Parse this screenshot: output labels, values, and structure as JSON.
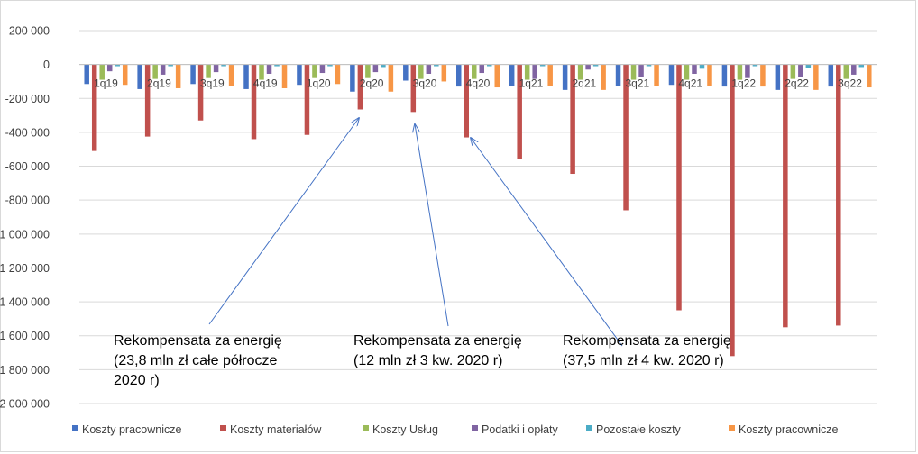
{
  "chart_data": {
    "type": "bar",
    "title": "",
    "xlabel": "",
    "ylabel": "",
    "ylim": [
      -2000000,
      200000
    ],
    "yticks": [
      200000,
      0,
      -200000,
      -400000,
      -600000,
      -800000,
      -1000000,
      -1200000,
      -1400000,
      -1600000,
      -1800000,
      -2000000
    ],
    "ytick_labels": [
      "200 000",
      "0",
      "-200 000",
      "-400 000",
      "-600 000",
      "-800 000",
      "-1 000 000",
      "-1 200 000",
      "-1 400 000",
      "-1 600 000",
      "-1 800 000",
      "-2 000 000"
    ],
    "grid": true,
    "legend_position": "bottom",
    "categories": [
      "1q19",
      "2q19",
      "3q19",
      "4q19",
      "1q20",
      "2q20",
      "3q20",
      "4q20",
      "1q21",
      "2q21",
      "3q21",
      "4q21",
      "1q22",
      "2q22",
      "3q22"
    ],
    "series": [
      {
        "name": "Koszty pracownicze",
        "color": "#4472C4",
        "values": [
          -115000,
          -145000,
          -115000,
          -145000,
          -120000,
          -160000,
          -95000,
          -130000,
          -125000,
          -150000,
          -125000,
          -120000,
          -130000,
          -150000,
          -130000
        ]
      },
      {
        "name": "Koszty materiałów",
        "color": "#C0504D",
        "values": [
          -510000,
          -425000,
          -330000,
          -440000,
          -415000,
          -265000,
          -280000,
          -430000,
          -555000,
          -645000,
          -860000,
          -1450000,
          -1720000,
          -1550000,
          -1540000
        ]
      },
      {
        "name": "Koszty Usług",
        "color": "#9BBB59",
        "values": [
          -90000,
          -85000,
          -80000,
          -90000,
          -80000,
          -80000,
          -85000,
          -85000,
          -90000,
          -90000,
          -90000,
          -90000,
          -90000,
          -85000,
          -85000
        ]
      },
      {
        "name": "Podatki i opłaty",
        "color": "#8064A2",
        "values": [
          -40000,
          -60000,
          -45000,
          -55000,
          -50000,
          -45000,
          -55000,
          -50000,
          -85000,
          -30000,
          -75000,
          -55000,
          -80000,
          -75000,
          -60000
        ]
      },
      {
        "name": "Pozostałe koszty",
        "color": "#4BACC6",
        "values": [
          -10000,
          -10000,
          -10000,
          -10000,
          -10000,
          -15000,
          -10000,
          -10000,
          -10000,
          -10000,
          -10000,
          -25000,
          -10000,
          -20000,
          -15000
        ]
      },
      {
        "name": "Koszty pracownicze",
        "color": "#F79646",
        "values": [
          -120000,
          -140000,
          -125000,
          -140000,
          -115000,
          -160000,
          -100000,
          -135000,
          -125000,
          -150000,
          -125000,
          -125000,
          -130000,
          -150000,
          -135000
        ]
      }
    ],
    "annotations": [
      {
        "lines": [
          "Rekompensata za energię",
          "(23,8 mln zł całe półrocze",
          "2020 r)"
        ],
        "points_to": "2q20"
      },
      {
        "lines": [
          "Rekompensata za energię",
          "(12 mln zł 3 kw. 2020 r)"
        ],
        "points_to": "3q20"
      },
      {
        "lines": [
          "Rekompensata za energię",
          "(37,5 mln zł 4 kw. 2020 r)"
        ],
        "points_to": "4q20"
      }
    ]
  }
}
